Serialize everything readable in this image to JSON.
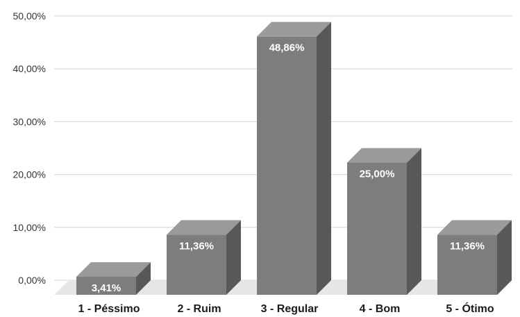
{
  "chart_data": {
    "type": "bar",
    "style": "3d-column",
    "categories": [
      "1 - Péssimo",
      "2 - Ruim",
      "3 - Regular",
      "4 - Bom",
      "5 - Ótimo"
    ],
    "values": [
      3.41,
      11.36,
      48.86,
      25.0,
      11.36
    ],
    "data_labels": [
      "3,41%",
      "11,36%",
      "48,86%",
      "25,00%",
      "11,36%"
    ],
    "ylim": [
      0,
      50
    ],
    "yticks": [
      0,
      10,
      20,
      30,
      40,
      50
    ],
    "ytick_labels": [
      "0,00%",
      "10,00%",
      "20,00%",
      "30,00%",
      "40,00%",
      "50,00%"
    ],
    "grid": true,
    "legend": "none",
    "title": "",
    "xlabel": "",
    "ylabel": "",
    "colors": {
      "bar_front": "#7d7d7d",
      "bar_top": "#9a9a9a",
      "bar_side": "#585858",
      "floor": "#e6e6e6",
      "grid": "#d4d4d4"
    }
  }
}
